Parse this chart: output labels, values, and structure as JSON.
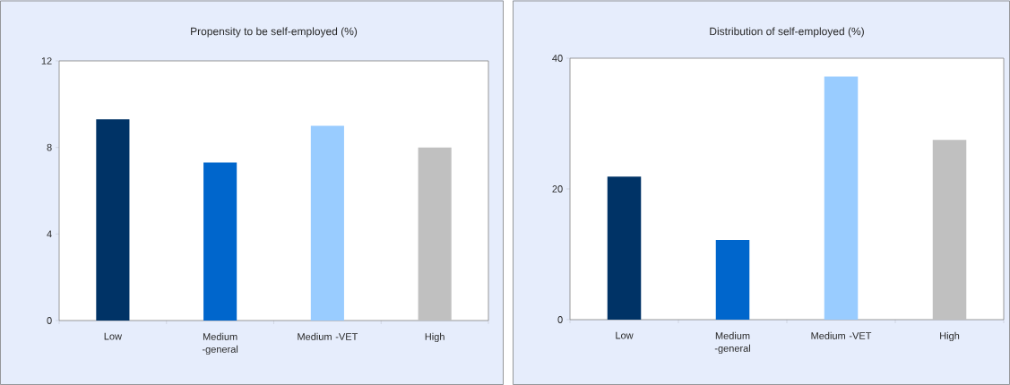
{
  "chart_data": [
    {
      "type": "bar",
      "title": "Propensity to be self-employed (%)",
      "categories": [
        "Low",
        "Medium -general",
        "Medium -VET",
        "High"
      ],
      "values": [
        9.3,
        7.3,
        9.0,
        8.0
      ],
      "colors": [
        "#003366",
        "#0066cc",
        "#99ccff",
        "#c0c0c0"
      ],
      "ylim": [
        0,
        12
      ],
      "yticks": [
        0,
        4,
        8,
        12
      ]
    },
    {
      "type": "bar",
      "title": "Distribution of self-employed (%)",
      "categories": [
        "Low",
        "Medium -general",
        "Medium -VET",
        "High"
      ],
      "values": [
        21.9,
        12.2,
        37.2,
        27.5
      ],
      "colors": [
        "#003366",
        "#0066cc",
        "#99ccff",
        "#c0c0c0"
      ],
      "ylim": [
        0,
        40
      ],
      "yticks": [
        0,
        20,
        40
      ]
    }
  ]
}
